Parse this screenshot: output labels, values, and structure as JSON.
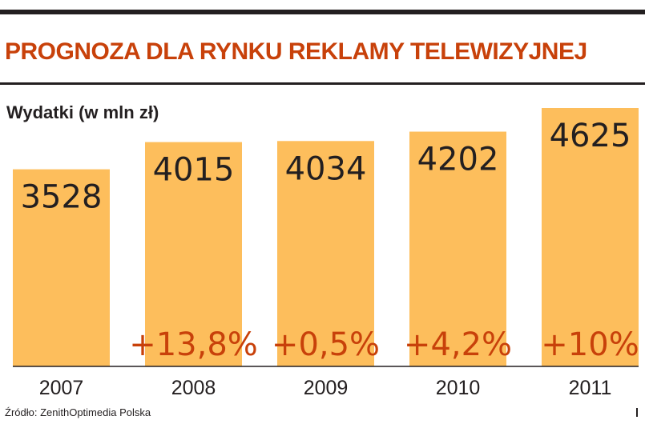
{
  "header": {
    "title": "PROGNOZA DLA RYNKU REKLAMY TELEWIZYJNEJ"
  },
  "source": "Źródło: ZenithOptimedia Polska",
  "colors": {
    "title": "#c8410a",
    "bar": "#fdbe5c",
    "change_label": "#c8410a",
    "text": "#231f20"
  },
  "chart_data": {
    "type": "bar",
    "title": "",
    "subtitle": "Wydatki (w mln zł)",
    "categories": [
      "2007",
      "2008",
      "2009",
      "2010",
      "2011"
    ],
    "values": [
      3528,
      4015,
      4034,
      4202,
      4625
    ],
    "value_labels": [
      "3528",
      "4015",
      "4034",
      "4202",
      "4625"
    ],
    "change_labels": [
      "",
      "+13,8%",
      "+0,5%",
      "+4,2%",
      "+10%"
    ],
    "xlabel": "",
    "ylabel": "",
    "ylim": [
      0,
      4625
    ],
    "grid": false,
    "legend": "none"
  }
}
